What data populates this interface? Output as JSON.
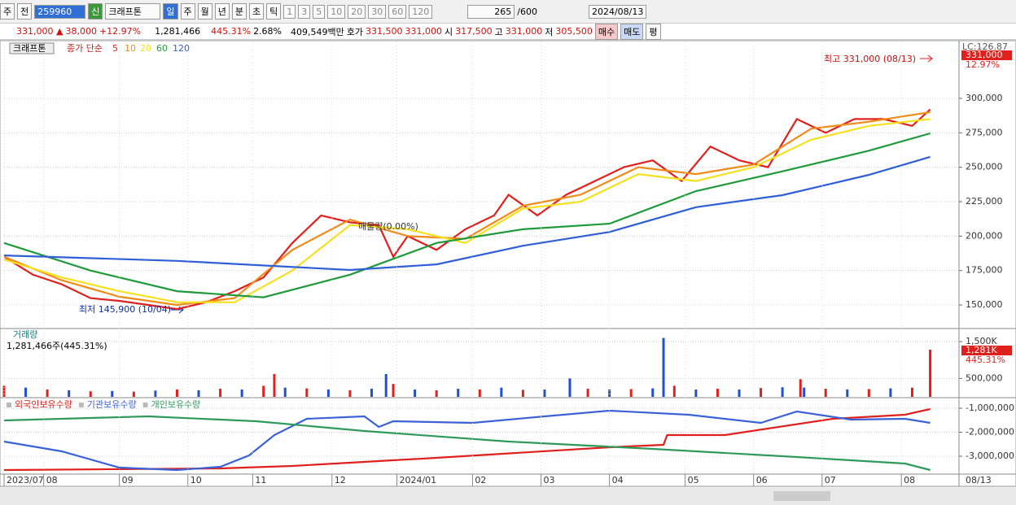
{
  "header": {
    "type_buttons": [
      "주",
      "전"
    ],
    "code": "259960",
    "badge": "신",
    "name": "크래프톤",
    "periods": [
      "일",
      "주",
      "월",
      "년",
      "분",
      "초",
      "틱"
    ],
    "intervals": [
      "1",
      "3",
      "5",
      "10",
      "20",
      "30",
      "60",
      "120"
    ],
    "count": "265",
    "count_max": "/600",
    "date": "2024/08/13",
    "price": "331,000 ▲",
    "change": "38,000",
    "change_pct": "+12.97%",
    "volume": "1,281,466",
    "volume_ratio": "445.31%",
    "turnover": "2.68%",
    "amount": "409,549백만",
    "quote_label": "호가",
    "ask": "331,500",
    "bid": "331,000",
    "open_label": "시",
    "open": "317,500",
    "high_label": "고",
    "high": "331,000",
    "low_label": "저",
    "low": "305,500",
    "buy": "매수",
    "sell": "매도",
    "avg": "평"
  },
  "chart_data": [
    {
      "type": "line",
      "title": "크래프톤",
      "ma_label": "종가 단순",
      "lc_label": "LC:126.87",
      "last_label": "331,000",
      "change_label": "12.97%",
      "annotations": [
        "최고 331,000 (08/13)",
        "최저 145,900 (10/04)",
        "매물량(0.00%)"
      ],
      "xlim": [
        0,
        265
      ],
      "ylim": [
        133500,
        340700
      ],
      "yticks": [
        {
          "value": 150000,
          "label": "150,000"
        },
        {
          "value": 175000,
          "label": "175,000"
        },
        {
          "value": 200000,
          "label": "200,000"
        },
        {
          "value": 225000,
          "label": "225,000"
        },
        {
          "value": 250000,
          "label": "250,000"
        },
        {
          "value": 275000,
          "label": "275,000"
        },
        {
          "value": 300000,
          "label": "300,000"
        }
      ],
      "series": [
        {
          "name": "5",
          "color": "#e0201c",
          "x": [
            0,
            8,
            16,
            24,
            32,
            40,
            48,
            56,
            64,
            72,
            80,
            88,
            96,
            104,
            108,
            112,
            120,
            128,
            136,
            140,
            148,
            156,
            164,
            172,
            180,
            188,
            196,
            204,
            212,
            220,
            228,
            236,
            244,
            252,
            257
          ],
          "values": [
            185000,
            172000,
            165000,
            155000,
            153000,
            150000,
            147000,
            152000,
            160000,
            170000,
            195000,
            215000,
            210000,
            208000,
            185000,
            200000,
            190000,
            205000,
            215000,
            230000,
            215000,
            230000,
            240000,
            250000,
            255000,
            240000,
            265000,
            255000,
            250000,
            285000,
            275000,
            285000,
            285000,
            280000,
            292000
          ]
        },
        {
          "name": "10",
          "color": "#f08a18",
          "x": [
            0,
            16,
            32,
            48,
            64,
            80,
            96,
            112,
            128,
            144,
            160,
            176,
            192,
            208,
            224,
            240,
            257
          ],
          "values": [
            185000,
            168000,
            156000,
            150000,
            155000,
            190000,
            212000,
            200000,
            198000,
            222000,
            230000,
            250000,
            245000,
            252000,
            278000,
            283000,
            290000
          ]
        },
        {
          "name": "20",
          "color": "#f5e020",
          "x": [
            0,
            16,
            32,
            48,
            64,
            80,
            96,
            112,
            128,
            144,
            160,
            176,
            192,
            208,
            224,
            240,
            257
          ],
          "values": [
            183000,
            170000,
            160000,
            152000,
            152000,
            175000,
            208000,
            205000,
            195000,
            220000,
            225000,
            245000,
            240000,
            250000,
            270000,
            280000,
            285000
          ]
        },
        {
          "name": "60",
          "color": "#1f9a3a",
          "x": [
            0,
            24,
            48,
            72,
            96,
            120,
            144,
            168,
            192,
            216,
            240,
            257
          ],
          "values": [
            195000,
            175000,
            160000,
            155600,
            172000,
            195000,
            205000,
            209000,
            232700,
            247000,
            262000,
            274600
          ]
        },
        {
          "name": "120",
          "color": "#2f5fd8",
          "x": [
            0,
            48,
            96,
            120,
            144,
            168,
            192,
            216,
            240,
            257
          ],
          "values": [
            186000,
            182000,
            175400,
            179500,
            193000,
            203000,
            221000,
            229700,
            244500,
            257500
          ]
        }
      ]
    },
    {
      "type": "bar",
      "title": "거래량",
      "subtitle": "1,281,466주(445.31%)",
      "last_label": "1,281K",
      "ratio_label": "445.31%",
      "xlim": [
        0,
        265
      ],
      "ylim": [
        0,
        1833000
      ],
      "yticks": [
        {
          "value": 500000,
          "label": "500,000"
        },
        {
          "value": 1500000,
          "label": "1,500K"
        }
      ],
      "x": [
        0,
        6,
        12,
        18,
        24,
        30,
        36,
        42,
        48,
        54,
        60,
        66,
        72,
        75,
        78,
        84,
        90,
        96,
        102,
        106,
        108,
        114,
        120,
        126,
        132,
        138,
        144,
        150,
        157,
        162,
        168,
        174,
        180,
        183,
        186,
        192,
        198,
        204,
        210,
        216,
        221,
        222,
        228,
        234,
        240,
        246,
        252,
        257
      ],
      "values": [
        300000,
        250000,
        200000,
        180000,
        150000,
        160000,
        140000,
        170000,
        200000,
        180000,
        220000,
        200000,
        300000,
        620000,
        250000,
        230000,
        200000,
        180000,
        220000,
        620000,
        350000,
        200000,
        180000,
        220000,
        200000,
        250000,
        190000,
        200000,
        500000,
        220000,
        200000,
        210000,
        230000,
        1600000,
        300000,
        200000,
        220000,
        200000,
        240000,
        260000,
        480000,
        250000,
        220000,
        200000,
        210000,
        230000,
        250000,
        1281466
      ],
      "colors": [
        "#e0201c",
        "#2050d0",
        "#e0201c",
        "#2050d0",
        "#e0201c",
        "#2050d0",
        "#e0201c",
        "#2050d0",
        "#e0201c",
        "#2050d0",
        "#e0201c",
        "#2050d0",
        "#e0201c",
        "#e0201c",
        "#2050d0",
        "#e0201c",
        "#2050d0",
        "#e0201c",
        "#2050d0",
        "#2050d0",
        "#e0201c",
        "#2050d0",
        "#e0201c",
        "#2050d0",
        "#e0201c",
        "#2050d0",
        "#e0201c",
        "#2050d0",
        "#2050d0",
        "#e0201c",
        "#2050d0",
        "#e0201c",
        "#2050d0",
        "#2050d0",
        "#e0201c",
        "#2050d0",
        "#e0201c",
        "#2050d0",
        "#e0201c",
        "#2050d0",
        "#e0201c",
        "#2050d0",
        "#e0201c",
        "#2050d0",
        "#e0201c",
        "#2050d0",
        "#e0201c",
        "#e0201c"
      ]
    },
    {
      "type": "line",
      "xlim": [
        0,
        265
      ],
      "ylim": [
        -3712000,
        -593000
      ],
      "yticks": [
        {
          "value": -1000000,
          "label": "-1,000,000"
        },
        {
          "value": -2000000,
          "label": "-2,000,000"
        },
        {
          "value": -3000000,
          "label": "-3,000,000"
        }
      ],
      "xticks": [
        {
          "value": 0,
          "label": "2023/07"
        },
        {
          "value": 11,
          "label": "08"
        },
        {
          "value": 32,
          "label": "09"
        },
        {
          "value": 51,
          "label": "10"
        },
        {
          "value": 69,
          "label": "11"
        },
        {
          "value": 91,
          "label": "12"
        },
        {
          "value": 109,
          "label": "2024/01"
        },
        {
          "value": 130,
          "label": "02"
        },
        {
          "value": 149,
          "label": "03"
        },
        {
          "value": 168,
          "label": "04"
        },
        {
          "value": 189,
          "label": "05"
        },
        {
          "value": 208,
          "label": "06"
        },
        {
          "value": 227,
          "label": "07"
        },
        {
          "value": 249,
          "label": "08"
        }
      ],
      "x_end_label": "08/13",
      "series": [
        {
          "name": "외국인보유수량",
          "color": "#e0201c",
          "x": [
            0,
            60,
            80,
            120,
            168,
            183,
            184,
            200,
            230,
            250,
            257
          ],
          "values": [
            -3576000,
            -3508000,
            -3407000,
            -3068000,
            -2627000,
            -2525000,
            -2119000,
            -2119000,
            -1441000,
            -1271000,
            -1034000
          ]
        },
        {
          "name": "기관보유수량",
          "color": "#3a62d8",
          "x": [
            0,
            16,
            32,
            48,
            60,
            68,
            75,
            84,
            100,
            104,
            108,
            130,
            150,
            168,
            190,
            210,
            220,
            235,
            250,
            257
          ],
          "values": [
            -2390000,
            -2797000,
            -3475000,
            -3576000,
            -3441000,
            -2966000,
            -2119000,
            -1441000,
            -1339000,
            -1780000,
            -1542000,
            -1610000,
            -1339000,
            -1102000,
            -1271000,
            -1610000,
            -1136000,
            -1475000,
            -1441000,
            -1610000
          ]
        },
        {
          "name": "개인보유수량",
          "color": "#2e9a5a",
          "x": [
            0,
            40,
            70,
            100,
            140,
            180,
            220,
            250,
            257
          ],
          "values": [
            -1508000,
            -1339000,
            -1542000,
            -1949000,
            -2390000,
            -2695000,
            -3034000,
            -3305000,
            -3576000
          ]
        }
      ]
    }
  ]
}
